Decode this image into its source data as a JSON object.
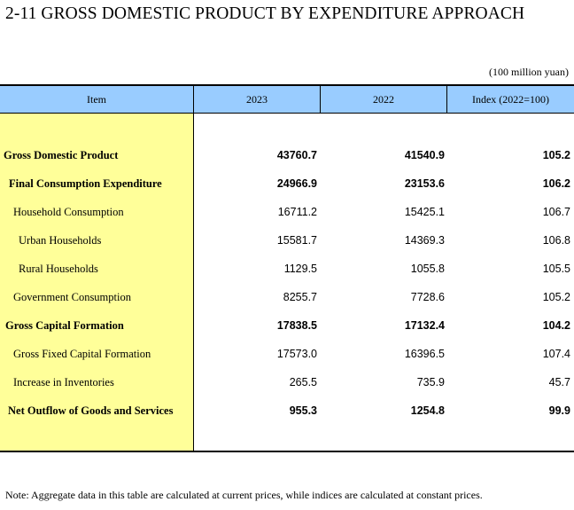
{
  "title": "2-11  GROSS DOMESTIC PRODUCT BY EXPENDITURE APPROACH",
  "unit": "(100 million yuan)",
  "header": {
    "item": "Item",
    "col_2023": "2023",
    "col_2022": "2022",
    "col_index": "Index (2022=100)"
  },
  "rows": [
    {
      "label": "Gross Domestic Product",
      "v2023": "43760.7",
      "v2022": "41540.9",
      "index": "105.2"
    },
    {
      "label": "Final Consumption Expenditure",
      "v2023": "24966.9",
      "v2022": "23153.6",
      "index": "106.2"
    },
    {
      "label": "Household Consumption",
      "v2023": "16711.2",
      "v2022": "15425.1",
      "index": "106.7"
    },
    {
      "label": "Urban Households",
      "v2023": "15581.7",
      "v2022": "14369.3",
      "index": "106.8"
    },
    {
      "label": "Rural Households",
      "v2023": "1129.5",
      "v2022": "1055.8",
      "index": "105.5"
    },
    {
      "label": "Government Consumption",
      "v2023": "8255.7",
      "v2022": "7728.6",
      "index": "105.2"
    },
    {
      "label": "Gross Capital Formation",
      "v2023": "17838.5",
      "v2022": "17132.4",
      "index": "104.2"
    },
    {
      "label": "Gross Fixed Capital Formation",
      "v2023": "17573.0",
      "v2022": "16396.5",
      "index": "107.4"
    },
    {
      "label": "Increase in Inventories",
      "v2023": "265.5",
      "v2022": "735.9",
      "index": "45.7"
    },
    {
      "label": "Net Outflow of Goods and Services",
      "v2023": "955.3",
      "v2022": "1254.8",
      "index": "99.9"
    }
  ],
  "note": "Note: Aggregate data in this table are calculated at current prices, while indices are calculated at constant prices.",
  "colors": {
    "header_bg": "#99ccff",
    "item_col_bg": "#ffff99"
  }
}
